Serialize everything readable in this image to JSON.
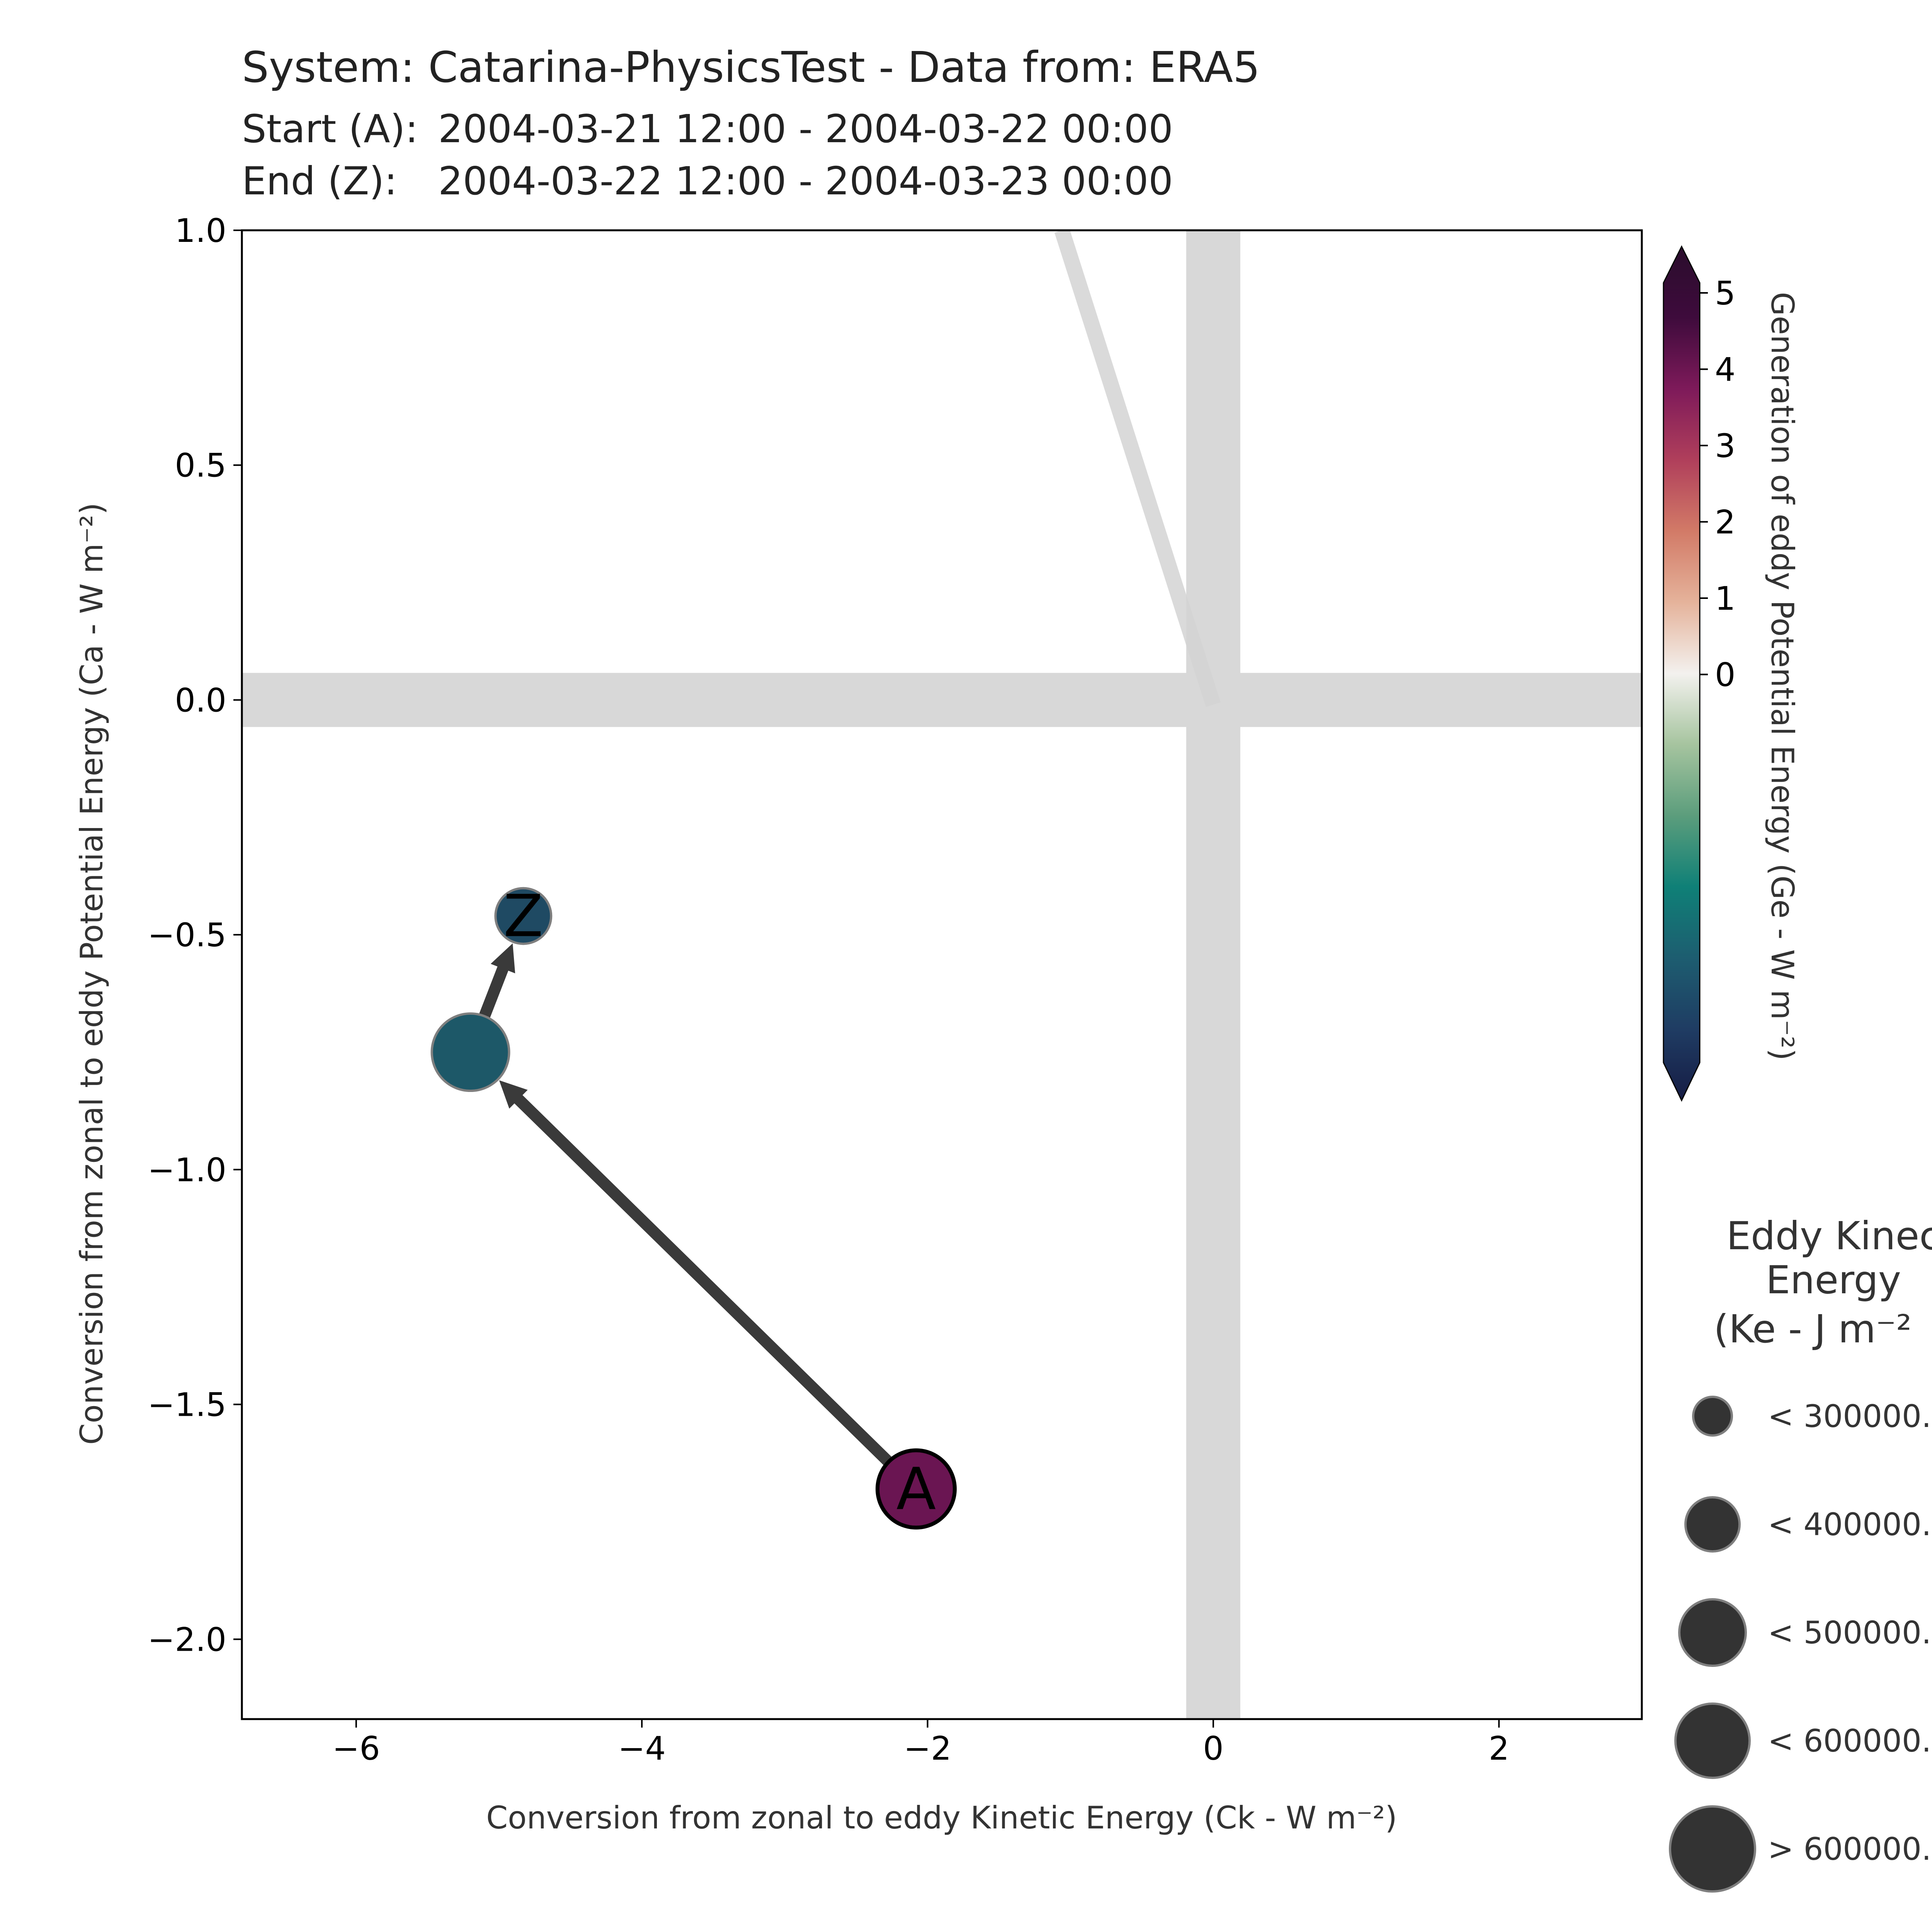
{
  "header": {
    "title": "System: Catarina-PhysicsTest - Data from: ERA5",
    "start_label": "Start (A):",
    "start_range": "2004-03-21 12:00 - 2004-03-22 00:00",
    "end_label": "End (Z):",
    "end_range": "2004-03-22 12:00 - 2004-03-23 00:00"
  },
  "chart_data": {
    "type": "scatter",
    "xlabel": "Conversion from zonal to eddy Kinetic Energy (Ck -  W m⁻²)",
    "ylabel": "Conversion from zonal to eddy Potential Energy (Ca -  W m⁻²)",
    "xlim": [
      -6.8,
      3.0
    ],
    "ylim": [
      -2.17,
      1.0
    ],
    "x_ticks": [
      -6,
      -4,
      -2,
      0,
      2
    ],
    "x_tick_labels": [
      "−6",
      "−4",
      "−2",
      "0",
      "2"
    ],
    "y_ticks": [
      1.0,
      0.5,
      0.0,
      -0.5,
      -1.0,
      -1.5,
      -2.0
    ],
    "y_tick_labels": [
      "1.0",
      "0.5",
      "0.0",
      "−0.5",
      "−1.0",
      "−1.5",
      "−2.0"
    ],
    "grid": false,
    "zero_bands": true,
    "reference_line": {
      "x": [
        -1.06,
        0.0
      ],
      "y": [
        1.0,
        -0.01
      ],
      "color": "#d3d3d3"
    },
    "points": [
      {
        "label": "A",
        "x": -2.08,
        "y": -1.68,
        "ge": 4.1,
        "ke_class": 3,
        "color": "#6a1552",
        "edge": "#000000"
      },
      {
        "label": "",
        "x": -5.2,
        "y": -0.75,
        "ge": -0.9,
        "ke_class": 3,
        "color": "#1d5868",
        "edge": "#7f7f7f"
      },
      {
        "label": "Z",
        "x": -4.83,
        "y": -0.46,
        "ge": -1.0,
        "ke_class": 1,
        "color": "#1f4a63",
        "edge": "#7f7f7f"
      }
    ],
    "arrow_color": "#3a3a3a",
    "colorbar": {
      "label": "Generation of eddy Potential Energy (Ge -  W m⁻²)",
      "ticks": [
        5,
        4,
        3,
        2,
        1,
        0
      ],
      "tick_labels": [
        "5",
        "4",
        "3",
        "2",
        "1",
        "0"
      ],
      "min": -5,
      "max": 5,
      "extend": "both",
      "colors": [
        "#161c44",
        "#1f3c63",
        "#1d5d70",
        "#0f8077",
        "#5b9d7c",
        "#a6c49f",
        "#f3f1ee",
        "#e5b39b",
        "#d27a67",
        "#b03f5b",
        "#7e1a5a",
        "#3e0b3c",
        "#2a0c2c"
      ]
    },
    "size_legend": {
      "title_lines": [
        "Eddy Kinec",
        "Energy",
        "(Ke -  J m⁻²"
      ],
      "items": [
        {
          "label": "< 300000."
        },
        {
          "label": "< 400000."
        },
        {
          "label": "< 500000."
        },
        {
          "label": "< 600000."
        },
        {
          "label": "> 600000."
        }
      ]
    }
  }
}
